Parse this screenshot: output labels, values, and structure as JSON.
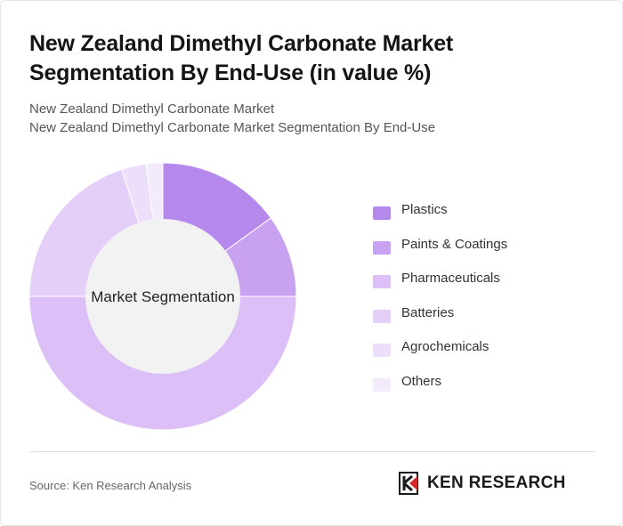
{
  "header": {
    "title": "New Zealand Dimethyl Carbonate Market Segmentation By End-Use (in value %)",
    "subtitle_1": "New Zealand Dimethyl Carbonate Market",
    "subtitle_2": "New Zealand Dimethyl Carbonate Market Segmentation By End-Use"
  },
  "chart_data": {
    "type": "pie",
    "center_label": "Market Segmentation",
    "categories": [
      "Plastics",
      "Paints & Coatings",
      "Pharmaceuticals",
      "Batteries",
      "Agrochemicals",
      "Others"
    ],
    "values": [
      15,
      10,
      50,
      20,
      3,
      2
    ],
    "colors": [
      "#b588ec",
      "#c8a2f0",
      "#dbbff6",
      "#e4cff8",
      "#eddff9",
      "#f3eafb"
    ],
    "legend_position": "right"
  },
  "footer": {
    "source": "Source: Ken Research Analysis",
    "brand": "KEN RESEARCH",
    "brand_icon": "ken-research-logo-icon"
  }
}
